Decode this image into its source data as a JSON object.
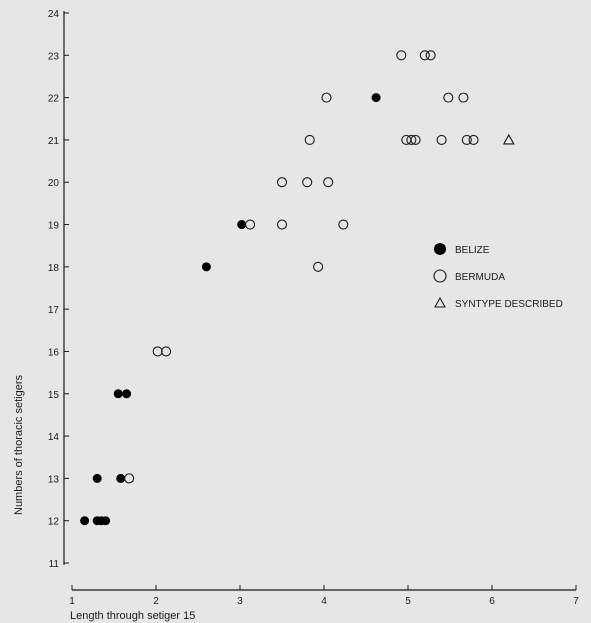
{
  "chart_data": {
    "type": "scatter",
    "title": "",
    "xlabel": "Length through setiger 15",
    "ylabel": "Numbers of thoracic setigers",
    "xlim": [
      1,
      7
    ],
    "ylim": [
      11,
      24
    ],
    "x_ticks": [
      1,
      2,
      3,
      4,
      5,
      6,
      7
    ],
    "y_ticks": [
      11,
      12,
      13,
      14,
      15,
      16,
      17,
      18,
      19,
      20,
      21,
      22,
      23,
      24
    ],
    "grid": false,
    "legend_position": "right",
    "series": [
      {
        "name": "BELIZE",
        "marker": "filled-circle",
        "color": "#000000",
        "points": [
          [
            1.15,
            12
          ],
          [
            1.3,
            12
          ],
          [
            1.35,
            12
          ],
          [
            1.4,
            12
          ],
          [
            1.3,
            13
          ],
          [
            1.58,
            13
          ],
          [
            1.55,
            15
          ],
          [
            1.65,
            15
          ],
          [
            2.6,
            18
          ],
          [
            3.02,
            19
          ],
          [
            4.62,
            22
          ]
        ]
      },
      {
        "name": "BERMUDA",
        "marker": "open-circle",
        "color": "#1a1a1a",
        "points": [
          [
            1.68,
            13
          ],
          [
            2.02,
            16
          ],
          [
            2.12,
            16
          ],
          [
            3.12,
            19
          ],
          [
            3.5,
            19
          ],
          [
            4.23,
            19
          ],
          [
            3.93,
            18
          ],
          [
            3.5,
            20
          ],
          [
            3.8,
            20
          ],
          [
            4.05,
            20
          ],
          [
            3.83,
            21
          ],
          [
            4.03,
            22
          ],
          [
            4.98,
            21
          ],
          [
            5.04,
            21
          ],
          [
            5.09,
            21
          ],
          [
            5.4,
            21
          ],
          [
            5.7,
            21
          ],
          [
            5.78,
            21
          ],
          [
            5.48,
            22
          ],
          [
            5.66,
            22
          ],
          [
            4.92,
            23
          ],
          [
            5.2,
            23
          ],
          [
            5.27,
            23
          ]
        ]
      },
      {
        "name": "SYNTYPE DESCRIBED",
        "marker": "open-triangle",
        "color": "#1a1a1a",
        "points": [
          [
            6.2,
            21
          ]
        ]
      }
    ]
  }
}
